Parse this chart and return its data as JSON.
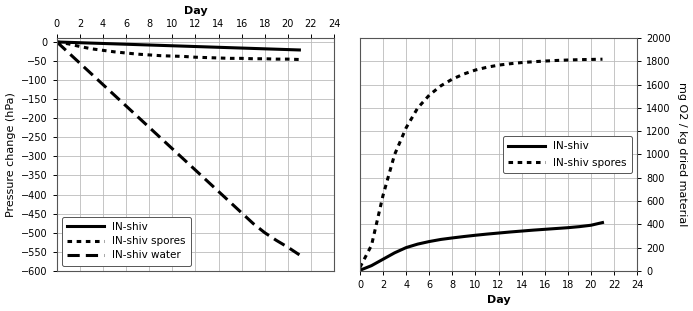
{
  "left_top_label": "Day",
  "right_xlabel": "Day",
  "left_ylabel": "Pressure change (hPa)",
  "right_ylabel": "mg O2 / kg dried material",
  "left_xlim": [
    0,
    24
  ],
  "right_xlim": [
    0,
    24
  ],
  "left_ylim": [
    -600,
    10
  ],
  "right_ylim": [
    0,
    2000
  ],
  "left_xticks": [
    0,
    2,
    4,
    6,
    8,
    10,
    12,
    14,
    16,
    18,
    20,
    22,
    24
  ],
  "right_xticks": [
    0,
    2,
    4,
    6,
    8,
    10,
    12,
    14,
    16,
    18,
    20,
    22,
    24
  ],
  "left_yticks": [
    0,
    -50,
    -100,
    -150,
    -200,
    -250,
    -300,
    -350,
    -400,
    -450,
    -500,
    -550,
    -600
  ],
  "right_yticks": [
    0,
    200,
    400,
    600,
    800,
    1000,
    1200,
    1400,
    1600,
    1800,
    2000
  ],
  "grid_color": "#bbbbbb",
  "line_color": "#000000",
  "background_color": "#ffffff",
  "left_series": [
    {
      "label": "IN-shiv",
      "style": "solid",
      "lw": 2.2,
      "x": [
        0,
        1,
        2,
        3,
        4,
        5,
        6,
        7,
        8,
        9,
        10,
        11,
        12,
        13,
        14,
        15,
        16,
        17,
        18,
        19,
        20,
        21
      ],
      "y": [
        0,
        -1,
        -2,
        -3,
        -4,
        -5,
        -6,
        -7,
        -8,
        -9,
        -10,
        -11,
        -12,
        -13,
        -14,
        -15,
        -16,
        -17,
        -18,
        -19,
        -20,
        -21
      ]
    },
    {
      "label": "IN-shiv spores",
      "style": "dotted",
      "lw": 2.2,
      "x": [
        0,
        1,
        2,
        3,
        4,
        5,
        6,
        7,
        8,
        9,
        10,
        11,
        12,
        13,
        14,
        15,
        16,
        17,
        18,
        19,
        20,
        21
      ],
      "y": [
        0,
        -5,
        -12,
        -18,
        -22,
        -26,
        -29,
        -32,
        -34,
        -36,
        -37,
        -38,
        -40,
        -41,
        -42,
        -43,
        -43,
        -44,
        -44,
        -45,
        -45,
        -46
      ]
    },
    {
      "label": "IN-shiv water",
      "style": "dashed",
      "lw": 2.2,
      "x": [
        0,
        1,
        2,
        3,
        4,
        5,
        6,
        7,
        8,
        9,
        10,
        11,
        12,
        13,
        14,
        15,
        16,
        17,
        18,
        19,
        20,
        21
      ],
      "y": [
        0,
        -28,
        -56,
        -84,
        -112,
        -140,
        -168,
        -196,
        -224,
        -252,
        -280,
        -308,
        -336,
        -364,
        -392,
        -420,
        -448,
        -476,
        -500,
        -520,
        -538,
        -558
      ]
    }
  ],
  "right_series": [
    {
      "label": "IN-shiv",
      "style": "solid",
      "lw": 2.2,
      "x": [
        0,
        1,
        2,
        3,
        4,
        5,
        6,
        7,
        8,
        9,
        10,
        11,
        12,
        13,
        14,
        15,
        16,
        17,
        18,
        19,
        20,
        21
      ],
      "y": [
        5,
        45,
        100,
        155,
        200,
        230,
        252,
        270,
        283,
        295,
        306,
        316,
        325,
        334,
        342,
        350,
        357,
        364,
        371,
        380,
        392,
        415
      ]
    },
    {
      "label": "IN-shiv spores",
      "style": "dotted",
      "lw": 2.2,
      "x": [
        0,
        1,
        2,
        3,
        4,
        5,
        6,
        7,
        8,
        9,
        10,
        11,
        12,
        13,
        14,
        15,
        16,
        17,
        18,
        19,
        20,
        21
      ],
      "y": [
        30,
        220,
        650,
        1000,
        1230,
        1400,
        1510,
        1590,
        1648,
        1692,
        1726,
        1750,
        1768,
        1780,
        1790,
        1797,
        1803,
        1808,
        1812,
        1815,
        1817,
        1819
      ]
    }
  ],
  "figsize": [
    6.93,
    3.11
  ],
  "dpi": 100,
  "tick_fontsize": 7,
  "label_fontsize": 8,
  "legend_fontsize": 7.5
}
